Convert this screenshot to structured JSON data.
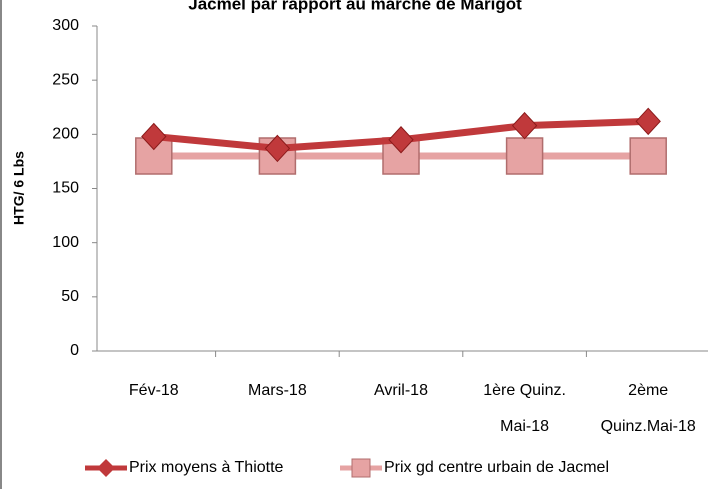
{
  "chart_data": {
    "type": "line",
    "title": "Jacmel par rapport au marché de Marigot",
    "y_label": "HTG/ 6 Lbs",
    "categories": [
      "Fév-18",
      "Mars-18",
      "Avril-18",
      "1ère Quinz.\nMai-18",
      "2ème\nQuinz.Mai-18"
    ],
    "series": [
      {
        "name": "Prix moyens à Thiotte",
        "color": "#c0393b",
        "marker": "diamond",
        "values": [
          198,
          187,
          195,
          208,
          212
        ]
      },
      {
        "name": "Prix gd centre urbain de Jacmel",
        "color": "#e6a3a3",
        "marker": "square",
        "values": [
          180,
          180,
          180,
          180,
          180
        ]
      }
    ],
    "ylim": [
      0,
      300
    ],
    "yticks": [
      0,
      50,
      100,
      150,
      200,
      250,
      300
    ],
    "grid": false,
    "legend": "bottom"
  }
}
